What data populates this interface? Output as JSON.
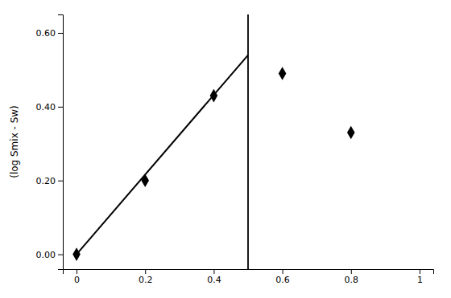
{
  "chart_data": {
    "type": "scatter",
    "ylabel": "(log Smix - Sw)",
    "xlim": [
      -0.04,
      1.04
    ],
    "ylim": [
      -0.04,
      0.65
    ],
    "xticks": [
      0,
      0.2,
      0.4,
      0.6,
      0.8,
      1
    ],
    "yticks": [
      {
        "value": 0.0,
        "label": "0.00"
      },
      {
        "value": 0.2,
        "label": "0.20"
      },
      {
        "value": 0.4,
        "label": "0.40"
      },
      {
        "value": 0.6,
        "label": "0.60"
      }
    ],
    "grid": false,
    "series": [
      {
        "type": "scatter",
        "marker": "diamond",
        "color": "#000000",
        "x": [
          0,
          0.2,
          0.4,
          0.6,
          0.8
        ],
        "values": [
          0.0,
          0.2,
          0.43,
          0.49,
          0.33
        ]
      },
      {
        "type": "line",
        "color": "#000000",
        "x": [
          0,
          0.5
        ],
        "values": [
          0.0,
          0.54
        ]
      },
      {
        "type": "vline",
        "color": "#000000",
        "x": [
          0.5
        ]
      }
    ]
  }
}
